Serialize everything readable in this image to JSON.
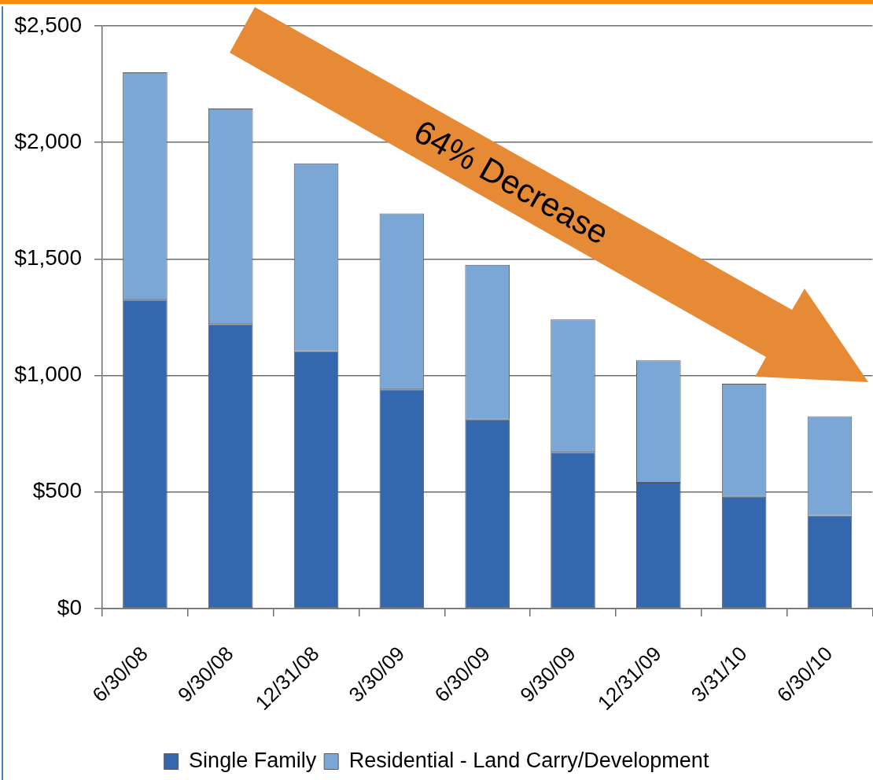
{
  "chart_data": {
    "type": "bar",
    "stacked": true,
    "categories": [
      "6/30/08",
      "9/30/08",
      "12/31/08",
      "3/30/09",
      "6/30/09",
      "9/30/09",
      "12/31/09",
      "3/31/10",
      "6/30/10"
    ],
    "series": [
      {
        "name": "Single Family",
        "color": "#3367ae",
        "values": [
          1325,
          1220,
          1105,
          940,
          810,
          670,
          540,
          480,
          400
        ]
      },
      {
        "name": "Residential - Land Carry/Development",
        "color": "#7ba7d7",
        "values": [
          975,
          925,
          805,
          755,
          665,
          570,
          525,
          485,
          425
        ]
      }
    ],
    "ylim": [
      0,
      2500
    ],
    "yticks": [
      {
        "value": 0,
        "label": "$0"
      },
      {
        "value": 500,
        "label": "$500"
      },
      {
        "value": 1000,
        "label": "$1,000"
      },
      {
        "value": 1500,
        "label": "$1,500"
      },
      {
        "value": 2000,
        "label": "$2,000"
      },
      {
        "value": 2500,
        "label": "$2,500"
      }
    ],
    "grid": "y",
    "legend": "bottom",
    "annotations": [
      "64% Decrease"
    ]
  }
}
